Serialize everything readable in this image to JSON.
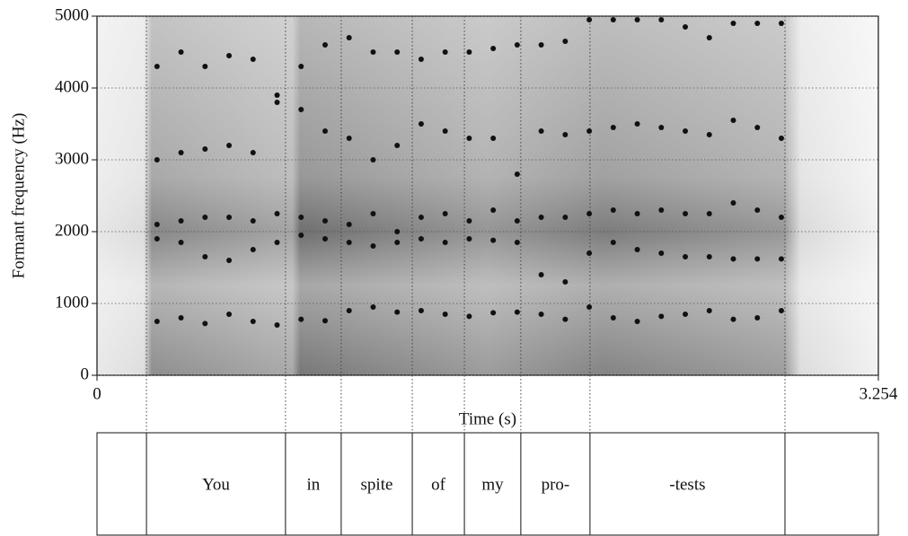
{
  "chart_data": {
    "type": "scatter",
    "xlabel": "Time (s)",
    "ylabel": "Formant frequency (Hz)",
    "xlim": [
      0,
      3.254
    ],
    "xticks": [
      0,
      3.254
    ],
    "ylim": [
      0,
      5000
    ],
    "yticks": [
      0,
      1000,
      2000,
      3000,
      4000,
      5000
    ],
    "series": [
      {
        "color": "#111111",
        "x": [
          0.25,
          0.35,
          0.45,
          0.55,
          0.65,
          0.75,
          0.85,
          0.95,
          1.05,
          1.15,
          1.25,
          1.35,
          1.45,
          1.55,
          1.65,
          1.75,
          1.85,
          1.95,
          2.05,
          2.15,
          2.25,
          2.35,
          2.45,
          2.55,
          2.65,
          2.75,
          2.85
        ],
        "values": [
          750,
          800,
          720,
          850,
          750,
          700,
          780,
          760,
          900,
          950,
          880,
          900,
          850,
          820,
          870,
          880,
          850,
          780,
          950,
          800,
          750,
          820,
          850,
          900,
          780,
          800,
          900
        ]
      },
      {
        "color": "#111111",
        "x": [
          0.25,
          0.35,
          0.45,
          0.55,
          0.65,
          0.75,
          0.85,
          0.95,
          1.05,
          1.15,
          1.25,
          1.35,
          1.45,
          1.55,
          1.65,
          1.75,
          1.85,
          1.95,
          2.05,
          2.15,
          2.25,
          2.35,
          2.45,
          2.55,
          2.65,
          2.75,
          2.85
        ],
        "values": [
          1900,
          1850,
          1650,
          1600,
          1750,
          1850,
          1950,
          1900,
          1850,
          1800,
          1850,
          1900,
          1850,
          1900,
          1880,
          1850,
          1400,
          1300,
          1700,
          1850,
          1750,
          1700,
          1650,
          1650,
          1620,
          1620,
          1620
        ]
      },
      {
        "color": "#111111",
        "x": [
          0.25,
          0.35,
          0.45,
          0.55,
          0.65,
          0.75,
          0.85,
          0.95,
          1.05,
          1.15,
          1.25,
          1.35,
          1.45,
          1.55,
          1.65,
          1.75,
          1.85,
          1.95,
          2.05,
          2.15,
          2.25,
          2.35,
          2.45,
          2.55,
          2.65,
          2.75,
          2.85
        ],
        "values": [
          2100,
          2150,
          2200,
          2200,
          2150,
          2250,
          2200,
          2150,
          2100,
          2250,
          2000,
          2200,
          2250,
          2150,
          2300,
          2150,
          2200,
          2200,
          2250,
          2300,
          2250,
          2300,
          2250,
          2250,
          2400,
          2300,
          2200
        ]
      },
      {
        "color": "#111111",
        "x": [
          0.25,
          0.35,
          0.45,
          0.55,
          0.65,
          0.75,
          0.85,
          0.95,
          1.05,
          1.15,
          1.25,
          1.35,
          1.45,
          1.55,
          1.65,
          1.75,
          1.85,
          1.95,
          2.05,
          2.15,
          2.25,
          2.35,
          2.45,
          2.55,
          2.65,
          2.75,
          2.85
        ],
        "values": [
          3000,
          3100,
          3150,
          3200,
          3100,
          3800,
          3700,
          3400,
          3300,
          3000,
          3200,
          3500,
          3400,
          3300,
          3300,
          2800,
          3400,
          3350,
          3400,
          3450,
          3500,
          3450,
          3400,
          3350,
          3550,
          3450,
          3300
        ]
      },
      {
        "color": "#111111",
        "x": [
          0.25,
          0.35,
          0.45,
          0.55,
          0.65,
          0.75,
          0.85,
          0.95,
          1.05,
          1.15,
          1.25,
          1.35,
          1.45,
          1.55,
          1.65,
          1.75,
          1.85,
          1.95,
          2.05,
          2.15,
          2.25,
          2.35,
          2.45,
          2.55,
          2.65,
          2.75,
          2.85
        ],
        "values": [
          4300,
          4500,
          4300,
          4450,
          4400,
          3900,
          4300,
          4600,
          4700,
          4500,
          4500,
          4400,
          4500,
          4500,
          4550,
          4600,
          4600,
          4650,
          4950,
          4950,
          4950,
          4950,
          4850,
          4700,
          4900,
          4900,
          4900
        ]
      }
    ],
    "tier": {
      "boundaries": [
        0.206,
        0.785,
        1.017,
        1.313,
        1.53,
        1.765,
        2.053,
        2.865
      ],
      "intervals": [
        {
          "label": "You",
          "start": 0.206,
          "end": 0.785
        },
        {
          "label": "in",
          "start": 0.785,
          "end": 1.017
        },
        {
          "label": "spite",
          "start": 1.017,
          "end": 1.313
        },
        {
          "label": "of",
          "start": 1.313,
          "end": 1.53
        },
        {
          "label": "my",
          "start": 1.53,
          "end": 1.765
        },
        {
          "label": "pro-",
          "start": 1.765,
          "end": 2.053
        },
        {
          "label": "-tests",
          "start": 2.053,
          "end": 2.865
        }
      ]
    }
  }
}
